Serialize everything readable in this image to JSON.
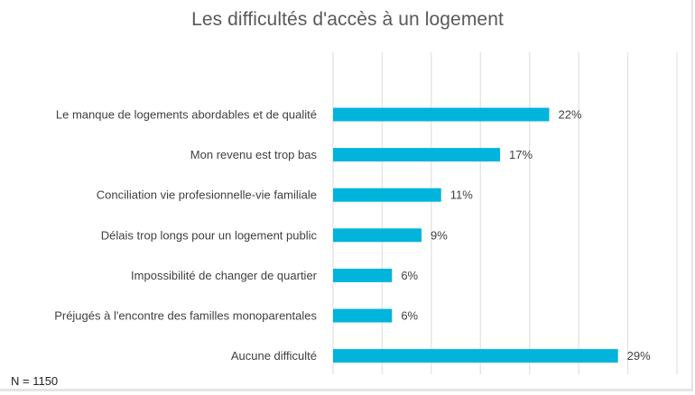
{
  "chart_data": {
    "type": "bar",
    "orientation": "horizontal",
    "title": "Les difficultés d'accès à un logement",
    "xlabel": "",
    "ylabel": "",
    "categories": [
      "Le manque de logements abordables et de qualité",
      "Mon revenu est trop bas",
      "Conciliation vie profesionnelle-vie familiale",
      "Délais trop longs pour un logement public",
      "Impossibilité de changer de quartier",
      "Préjugés à l'encontre des familles monoparentales",
      "Aucune difficulté"
    ],
    "values": [
      22,
      17,
      11,
      9,
      6,
      6,
      29
    ],
    "value_labels": [
      "22%",
      "17%",
      "11%",
      "9%",
      "6%",
      "6%",
      "29%"
    ],
    "unit": "%",
    "xlim": [
      0,
      35
    ],
    "gridline_step": 5,
    "grid": true,
    "axis_tick_labels_visible": false,
    "legend": "none",
    "bar_color": "#00B4DC",
    "annotation": "N = 1150"
  }
}
